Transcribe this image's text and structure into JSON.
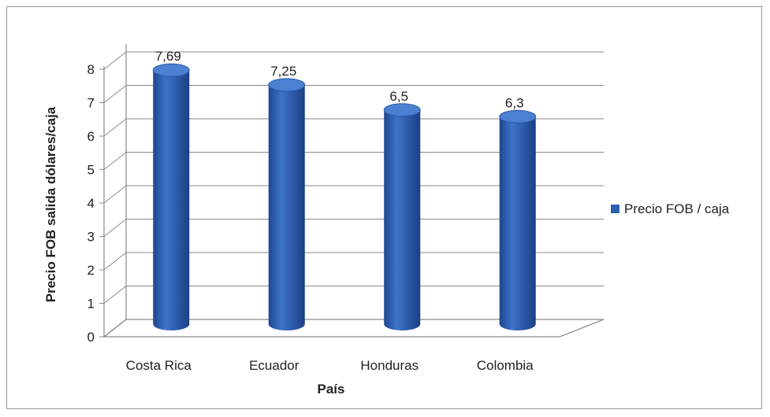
{
  "chart_data": {
    "type": "bar",
    "style": "3d-cylinder",
    "categories": [
      "Costa Rica",
      "Ecuador",
      "Honduras",
      "Colombia"
    ],
    "series": [
      {
        "name": "Precio FOB / caja",
        "values": [
          7.69,
          7.25,
          6.5,
          6.3
        ],
        "color": "#2f5fb0"
      }
    ],
    "data_labels": [
      "7,69",
      "7,25",
      "6,5",
      "6,3"
    ],
    "xlabel": "País",
    "ylabel": "Precio FOB salida dólares/caja",
    "ylim": [
      0,
      8
    ],
    "yticks": [
      0,
      1,
      2,
      3,
      4,
      5,
      6,
      7,
      8
    ],
    "grid": true,
    "legend_position": "right"
  }
}
